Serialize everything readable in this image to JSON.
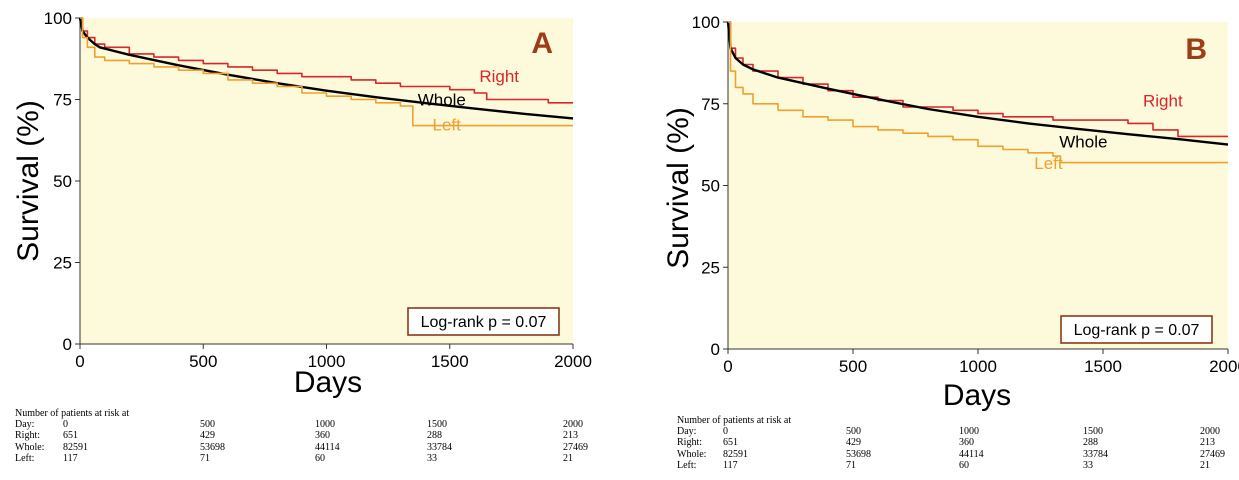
{
  "chart_data": [
    {
      "type": "line",
      "panel_label": "A",
      "xlabel": "Days",
      "ylabel": "Survival (%)",
      "xlim": [
        0,
        2000
      ],
      "ylim": [
        0,
        100
      ],
      "x_ticks": [
        "0",
        "500",
        "1000",
        "1500",
        "2000"
      ],
      "y_ticks": [
        "0",
        "25",
        "50",
        "75",
        "100"
      ],
      "annotation": "Log-rank p = 0.07",
      "background": "#fcfadb",
      "series": [
        {
          "name": "Right",
          "color": "#d8262a",
          "points": [
            [
              0,
              100
            ],
            [
              10,
              96
            ],
            [
              30,
              94
            ],
            [
              60,
              92
            ],
            [
              100,
              91
            ],
            [
              200,
              89
            ],
            [
              300,
              88
            ],
            [
              400,
              87
            ],
            [
              500,
              86
            ],
            [
              600,
              85
            ],
            [
              700,
              84
            ],
            [
              800,
              83
            ],
            [
              900,
              82
            ],
            [
              1000,
              82
            ],
            [
              1100,
              81
            ],
            [
              1200,
              80
            ],
            [
              1300,
              79
            ],
            [
              1400,
              79
            ],
            [
              1500,
              78
            ],
            [
              1600,
              77
            ],
            [
              1650,
              75
            ],
            [
              1800,
              75
            ],
            [
              1900,
              74
            ],
            [
              2000,
              74
            ]
          ]
        },
        {
          "name": "Whole",
          "color": "#000000",
          "points": [
            [
              0,
              100
            ],
            [
              10,
              96
            ],
            [
              30,
              94
            ],
            [
              60,
              92
            ],
            [
              80,
              91
            ],
            [
              200,
              88.7
            ],
            [
              400,
              85.5
            ],
            [
              600,
              82.6
            ],
            [
              800,
              80
            ],
            [
              1000,
              77.7
            ],
            [
              1200,
              75.7
            ],
            [
              1400,
              73.9
            ],
            [
              1600,
              72.2
            ],
            [
              1800,
              70.6
            ],
            [
              2000,
              69.2
            ]
          ]
        },
        {
          "name": "Left",
          "color": "#f0a02e",
          "points": [
            [
              0,
              100
            ],
            [
              10,
              94
            ],
            [
              30,
              91
            ],
            [
              60,
              88
            ],
            [
              100,
              87
            ],
            [
              200,
              86
            ],
            [
              300,
              85
            ],
            [
              400,
              84
            ],
            [
              500,
              83
            ],
            [
              600,
              81
            ],
            [
              700,
              80
            ],
            [
              800,
              79
            ],
            [
              900,
              77
            ],
            [
              1000,
              76
            ],
            [
              1100,
              75
            ],
            [
              1200,
              74
            ],
            [
              1300,
              73
            ],
            [
              1350,
              67
            ],
            [
              2000,
              67
            ]
          ]
        }
      ],
      "risk_table": {
        "title": "Number of patients at risk at",
        "rows": [
          {
            "label": "Day:",
            "values": [
              "0",
              "500",
              "1000",
              "1500",
              "2000"
            ]
          },
          {
            "label": "Right:",
            "values": [
              "651",
              "429",
              "360",
              "288",
              "213"
            ]
          },
          {
            "label": "Whole:",
            "values": [
              "82591",
              "53698",
              "44114",
              "33784",
              "27469"
            ]
          },
          {
            "label": "Left:",
            "values": [
              "117",
              "71",
              "60",
              "33",
              "21"
            ]
          }
        ]
      }
    },
    {
      "type": "line",
      "panel_label": "B",
      "xlabel": "Days",
      "ylabel": "Survival (%)",
      "xlim": [
        0,
        2000
      ],
      "ylim": [
        0,
        100
      ],
      "x_ticks": [
        "0",
        "500",
        "1000",
        "1500",
        "2000"
      ],
      "y_ticks": [
        "0",
        "25",
        "50",
        "75",
        "100"
      ],
      "annotation": "Log-rank p = 0.07",
      "background": "#fcfadb",
      "series": [
        {
          "name": "Right",
          "color": "#d8262a",
          "points": [
            [
              0,
              100
            ],
            [
              10,
              92
            ],
            [
              30,
              89
            ],
            [
              60,
              87
            ],
            [
              100,
              85
            ],
            [
              200,
              83
            ],
            [
              300,
              81
            ],
            [
              400,
              79
            ],
            [
              500,
              77
            ],
            [
              600,
              76
            ],
            [
              700,
              74
            ],
            [
              800,
              74
            ],
            [
              900,
              73
            ],
            [
              1000,
              72
            ],
            [
              1100,
              71
            ],
            [
              1200,
              71
            ],
            [
              1300,
              70
            ],
            [
              1400,
              70
            ],
            [
              1500,
              70
            ],
            [
              1600,
              69
            ],
            [
              1700,
              67
            ],
            [
              1800,
              65
            ],
            [
              1900,
              65
            ],
            [
              2000,
              65
            ]
          ]
        },
        {
          "name": "Whole",
          "color": "#000000",
          "points": [
            [
              0,
              100
            ],
            [
              10,
              92
            ],
            [
              30,
              89
            ],
            [
              60,
              87
            ],
            [
              100,
              85.5
            ],
            [
              200,
              83
            ],
            [
              400,
              79.6
            ],
            [
              600,
              76.4
            ],
            [
              800,
              73.4
            ],
            [
              1000,
              71
            ],
            [
              1200,
              69
            ],
            [
              1400,
              67.3
            ],
            [
              1600,
              65.7
            ],
            [
              1800,
              64.2
            ],
            [
              2000,
              62.5
            ]
          ]
        },
        {
          "name": "Left",
          "color": "#f0a02e",
          "points": [
            [
              0,
              100
            ],
            [
              10,
              85
            ],
            [
              30,
              80
            ],
            [
              60,
              78
            ],
            [
              100,
              75
            ],
            [
              200,
              73
            ],
            [
              300,
              71
            ],
            [
              400,
              70
            ],
            [
              500,
              68
            ],
            [
              600,
              67
            ],
            [
              700,
              66
            ],
            [
              800,
              65
            ],
            [
              900,
              64
            ],
            [
              1000,
              62
            ],
            [
              1100,
              61
            ],
            [
              1200,
              60
            ],
            [
              1300,
              59
            ],
            [
              1330,
              57
            ],
            [
              2000,
              57
            ]
          ]
        }
      ],
      "risk_table": {
        "title": "Number of patients at risk at",
        "rows": [
          {
            "label": "Day:",
            "values": [
              "0",
              "500",
              "1000",
              "1500",
              "2000"
            ]
          },
          {
            "label": "Right:",
            "values": [
              "651",
              "429",
              "360",
              "288",
              "213"
            ]
          },
          {
            "label": "Whole:",
            "values": [
              "82591",
              "53698",
              "44114",
              "33784",
              "27469"
            ]
          },
          {
            "label": "Left:",
            "values": [
              "117",
              "71",
              "60",
              "33",
              "21"
            ]
          }
        ]
      }
    }
  ]
}
